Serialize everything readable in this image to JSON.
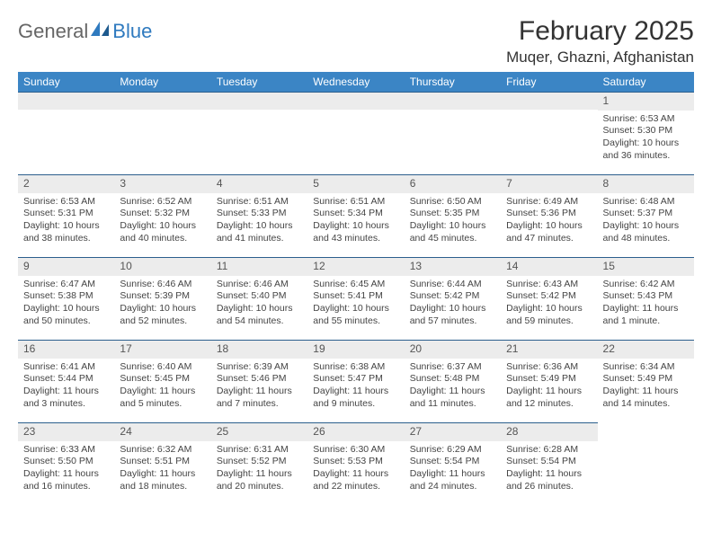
{
  "logo": {
    "part1": "General",
    "part2": "Blue"
  },
  "header": {
    "month_title": "February 2025",
    "location": "Muqer, Ghazni, Afghanistan"
  },
  "colors": {
    "header_bg": "#3b85c5",
    "header_text": "#ffffff",
    "daynum_bg": "#ececec",
    "cell_border": "#2c5f8d",
    "logo_accent": "#2f7abf"
  },
  "day_labels": [
    "Sunday",
    "Monday",
    "Tuesday",
    "Wednesday",
    "Thursday",
    "Friday",
    "Saturday"
  ],
  "weeks": [
    [
      {
        "n": "",
        "sunrise": "",
        "sunset": "",
        "daylight": ""
      },
      {
        "n": "",
        "sunrise": "",
        "sunset": "",
        "daylight": ""
      },
      {
        "n": "",
        "sunrise": "",
        "sunset": "",
        "daylight": ""
      },
      {
        "n": "",
        "sunrise": "",
        "sunset": "",
        "daylight": ""
      },
      {
        "n": "",
        "sunrise": "",
        "sunset": "",
        "daylight": ""
      },
      {
        "n": "",
        "sunrise": "",
        "sunset": "",
        "daylight": ""
      },
      {
        "n": "1",
        "sunrise": "Sunrise: 6:53 AM",
        "sunset": "Sunset: 5:30 PM",
        "daylight": "Daylight: 10 hours and 36 minutes."
      }
    ],
    [
      {
        "n": "2",
        "sunrise": "Sunrise: 6:53 AM",
        "sunset": "Sunset: 5:31 PM",
        "daylight": "Daylight: 10 hours and 38 minutes."
      },
      {
        "n": "3",
        "sunrise": "Sunrise: 6:52 AM",
        "sunset": "Sunset: 5:32 PM",
        "daylight": "Daylight: 10 hours and 40 minutes."
      },
      {
        "n": "4",
        "sunrise": "Sunrise: 6:51 AM",
        "sunset": "Sunset: 5:33 PM",
        "daylight": "Daylight: 10 hours and 41 minutes."
      },
      {
        "n": "5",
        "sunrise": "Sunrise: 6:51 AM",
        "sunset": "Sunset: 5:34 PM",
        "daylight": "Daylight: 10 hours and 43 minutes."
      },
      {
        "n": "6",
        "sunrise": "Sunrise: 6:50 AM",
        "sunset": "Sunset: 5:35 PM",
        "daylight": "Daylight: 10 hours and 45 minutes."
      },
      {
        "n": "7",
        "sunrise": "Sunrise: 6:49 AM",
        "sunset": "Sunset: 5:36 PM",
        "daylight": "Daylight: 10 hours and 47 minutes."
      },
      {
        "n": "8",
        "sunrise": "Sunrise: 6:48 AM",
        "sunset": "Sunset: 5:37 PM",
        "daylight": "Daylight: 10 hours and 48 minutes."
      }
    ],
    [
      {
        "n": "9",
        "sunrise": "Sunrise: 6:47 AM",
        "sunset": "Sunset: 5:38 PM",
        "daylight": "Daylight: 10 hours and 50 minutes."
      },
      {
        "n": "10",
        "sunrise": "Sunrise: 6:46 AM",
        "sunset": "Sunset: 5:39 PM",
        "daylight": "Daylight: 10 hours and 52 minutes."
      },
      {
        "n": "11",
        "sunrise": "Sunrise: 6:46 AM",
        "sunset": "Sunset: 5:40 PM",
        "daylight": "Daylight: 10 hours and 54 minutes."
      },
      {
        "n": "12",
        "sunrise": "Sunrise: 6:45 AM",
        "sunset": "Sunset: 5:41 PM",
        "daylight": "Daylight: 10 hours and 55 minutes."
      },
      {
        "n": "13",
        "sunrise": "Sunrise: 6:44 AM",
        "sunset": "Sunset: 5:42 PM",
        "daylight": "Daylight: 10 hours and 57 minutes."
      },
      {
        "n": "14",
        "sunrise": "Sunrise: 6:43 AM",
        "sunset": "Sunset: 5:42 PM",
        "daylight": "Daylight: 10 hours and 59 minutes."
      },
      {
        "n": "15",
        "sunrise": "Sunrise: 6:42 AM",
        "sunset": "Sunset: 5:43 PM",
        "daylight": "Daylight: 11 hours and 1 minute."
      }
    ],
    [
      {
        "n": "16",
        "sunrise": "Sunrise: 6:41 AM",
        "sunset": "Sunset: 5:44 PM",
        "daylight": "Daylight: 11 hours and 3 minutes."
      },
      {
        "n": "17",
        "sunrise": "Sunrise: 6:40 AM",
        "sunset": "Sunset: 5:45 PM",
        "daylight": "Daylight: 11 hours and 5 minutes."
      },
      {
        "n": "18",
        "sunrise": "Sunrise: 6:39 AM",
        "sunset": "Sunset: 5:46 PM",
        "daylight": "Daylight: 11 hours and 7 minutes."
      },
      {
        "n": "19",
        "sunrise": "Sunrise: 6:38 AM",
        "sunset": "Sunset: 5:47 PM",
        "daylight": "Daylight: 11 hours and 9 minutes."
      },
      {
        "n": "20",
        "sunrise": "Sunrise: 6:37 AM",
        "sunset": "Sunset: 5:48 PM",
        "daylight": "Daylight: 11 hours and 11 minutes."
      },
      {
        "n": "21",
        "sunrise": "Sunrise: 6:36 AM",
        "sunset": "Sunset: 5:49 PM",
        "daylight": "Daylight: 11 hours and 12 minutes."
      },
      {
        "n": "22",
        "sunrise": "Sunrise: 6:34 AM",
        "sunset": "Sunset: 5:49 PM",
        "daylight": "Daylight: 11 hours and 14 minutes."
      }
    ],
    [
      {
        "n": "23",
        "sunrise": "Sunrise: 6:33 AM",
        "sunset": "Sunset: 5:50 PM",
        "daylight": "Daylight: 11 hours and 16 minutes."
      },
      {
        "n": "24",
        "sunrise": "Sunrise: 6:32 AM",
        "sunset": "Sunset: 5:51 PM",
        "daylight": "Daylight: 11 hours and 18 minutes."
      },
      {
        "n": "25",
        "sunrise": "Sunrise: 6:31 AM",
        "sunset": "Sunset: 5:52 PM",
        "daylight": "Daylight: 11 hours and 20 minutes."
      },
      {
        "n": "26",
        "sunrise": "Sunrise: 6:30 AM",
        "sunset": "Sunset: 5:53 PM",
        "daylight": "Daylight: 11 hours and 22 minutes."
      },
      {
        "n": "27",
        "sunrise": "Sunrise: 6:29 AM",
        "sunset": "Sunset: 5:54 PM",
        "daylight": "Daylight: 11 hours and 24 minutes."
      },
      {
        "n": "28",
        "sunrise": "Sunrise: 6:28 AM",
        "sunset": "Sunset: 5:54 PM",
        "daylight": "Daylight: 11 hours and 26 minutes."
      },
      {
        "n": "",
        "sunrise": "",
        "sunset": "",
        "daylight": ""
      }
    ]
  ]
}
